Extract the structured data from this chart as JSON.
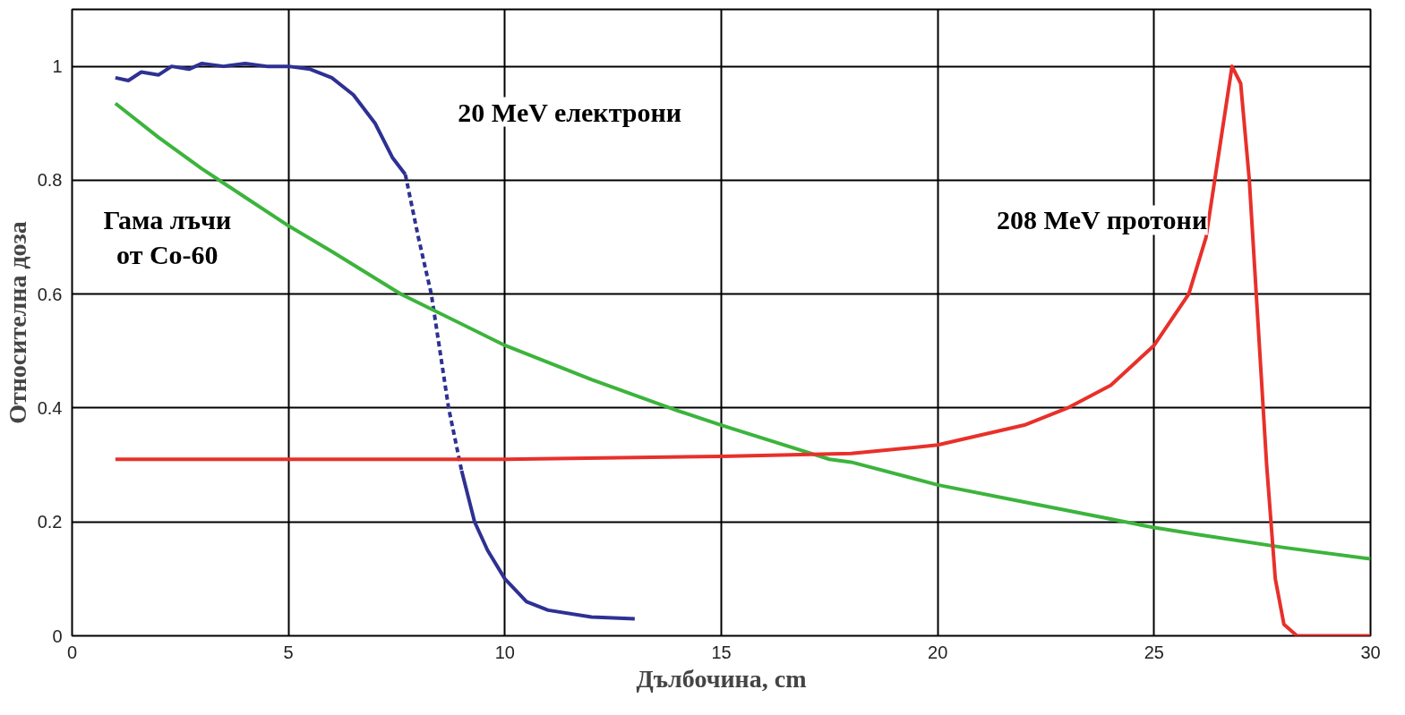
{
  "chart_data": {
    "type": "line",
    "xlabel": "Дълбочина, cm",
    "ylabel": "Относителна доза",
    "xlim": [
      0,
      30
    ],
    "ylim": [
      0,
      1.1
    ],
    "xticks": [
      0,
      5,
      10,
      15,
      20,
      25,
      30
    ],
    "yticks": [
      0,
      0.2,
      0.4,
      0.6,
      0.8,
      1
    ],
    "grid": true,
    "series": [
      {
        "color": "#2e3192",
        "line_style": "solid",
        "x": [
          1,
          1.3,
          1.6,
          2,
          2.3,
          2.7,
          3,
          3.5,
          4,
          4.5,
          5,
          5.5,
          6,
          6.5,
          7,
          7.4,
          7.7
        ],
        "values": [
          0.98,
          0.975,
          0.99,
          0.985,
          1.0,
          0.995,
          1.005,
          1.0,
          1.005,
          1.0,
          1.0,
          0.995,
          0.98,
          0.95,
          0.9,
          0.84,
          0.81
        ]
      },
      {
        "color": "#2e3192",
        "line_style": "dashed",
        "x": [
          7.7,
          8,
          8.3,
          8.5,
          8.7,
          9.0
        ],
        "values": [
          0.81,
          0.7,
          0.6,
          0.5,
          0.4,
          0.29
        ]
      },
      {
        "color": "#2e3192",
        "line_style": "solid",
        "x": [
          9.0,
          9.3,
          9.6,
          10,
          10.5,
          11,
          12,
          13
        ],
        "values": [
          0.29,
          0.2,
          0.15,
          0.1,
          0.06,
          0.045,
          0.033,
          0.03
        ]
      },
      {
        "color": "#3cb43c",
        "line_style": "solid",
        "x": [
          1,
          2,
          3,
          4,
          5,
          6,
          7.6,
          8,
          10,
          12,
          14,
          15,
          17.5,
          18,
          20,
          22,
          24,
          25,
          26,
          28,
          30
        ],
        "values": [
          0.935,
          0.875,
          0.82,
          0.77,
          0.72,
          0.675,
          0.6,
          0.585,
          0.51,
          0.45,
          0.395,
          0.37,
          0.31,
          0.305,
          0.265,
          0.235,
          0.205,
          0.19,
          0.178,
          0.155,
          0.135
        ]
      },
      {
        "color": "#e8302a",
        "line_style": "solid",
        "x": [
          1,
          10,
          15,
          18,
          20,
          22,
          23,
          24,
          25,
          25.8,
          26.2,
          26.5,
          26.8,
          27.0,
          27.2,
          27.4,
          27.6,
          27.8,
          28.0,
          28.3,
          30
        ],
        "values": [
          0.31,
          0.31,
          0.315,
          0.32,
          0.335,
          0.37,
          0.4,
          0.44,
          0.51,
          0.6,
          0.7,
          0.85,
          1.0,
          0.97,
          0.8,
          0.55,
          0.3,
          0.1,
          0.02,
          0.0,
          0.0
        ]
      }
    ],
    "annotations": [
      "20 MeV електрони",
      "Гама лъчи\nот Co-60",
      "208 MeV протони"
    ]
  }
}
